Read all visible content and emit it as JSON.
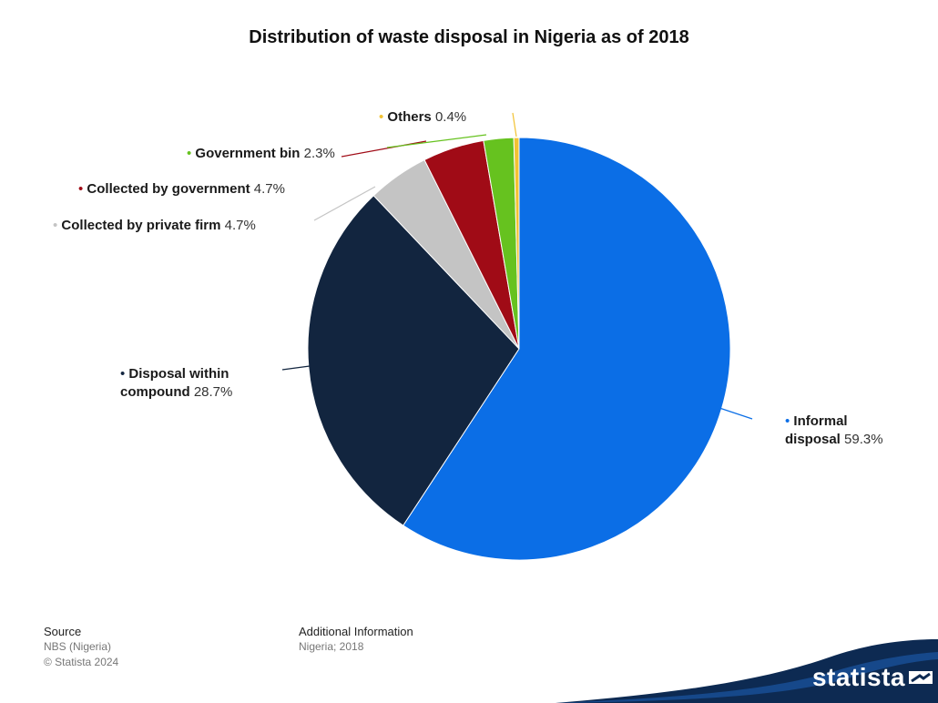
{
  "chart_data": {
    "type": "pie",
    "title": "Distribution of waste disposal in Nigeria as of 2018",
    "slices": [
      {
        "label": "Informal disposal",
        "label_lines": [
          "Informal",
          "disposal"
        ],
        "value": 59.3,
        "value_text": "59.3%",
        "color": "#0b6ee6"
      },
      {
        "label": "Disposal within compound",
        "label_lines": [
          "Disposal within",
          "compound"
        ],
        "value": 28.7,
        "value_text": "28.7%",
        "color": "#12253f"
      },
      {
        "label": "Collected by private firm",
        "label_lines": [
          "Collected by private firm"
        ],
        "value": 4.7,
        "value_text": "4.7%",
        "color": "#c4c4c4"
      },
      {
        "label": "Collected by government",
        "label_lines": [
          "Collected by government"
        ],
        "value": 4.7,
        "value_text": "4.7%",
        "color": "#a00b16"
      },
      {
        "label": "Government bin",
        "label_lines": [
          "Government bin"
        ],
        "value": 2.3,
        "value_text": "2.3%",
        "color": "#66c21f"
      },
      {
        "label": "Others",
        "label_lines": [
          "Others"
        ],
        "value": 0.4,
        "value_text": "0.4%",
        "color": "#f2c233"
      }
    ]
  },
  "footer": {
    "source_heading": "Source",
    "source_lines": [
      "NBS (Nigeria)",
      "© Statista 2024"
    ],
    "info_heading": "Additional Information",
    "info_lines": [
      "Nigeria; 2018"
    ]
  },
  "brand": {
    "name": "statista",
    "color": "#0d2a52"
  }
}
